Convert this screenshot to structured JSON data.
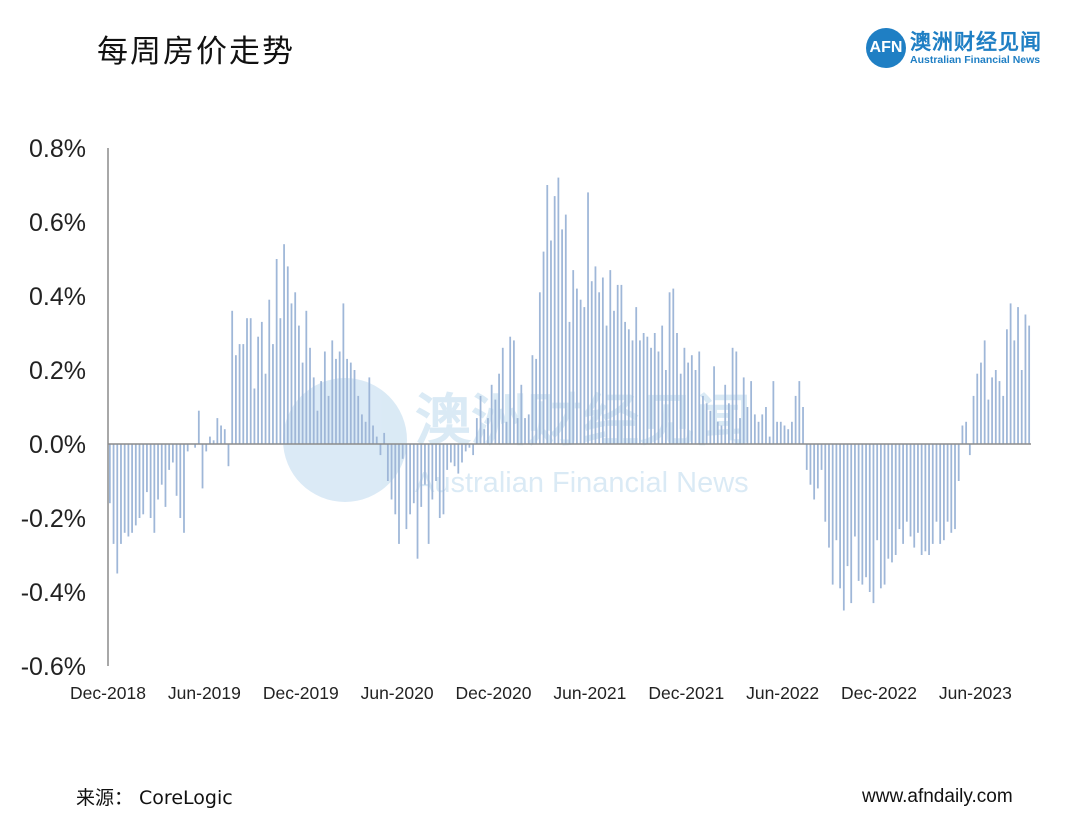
{
  "title": "每周房价走势",
  "logo": {
    "mark": "AFN",
    "name_cn": "澳洲财经见闻",
    "name_en": "Australian Financial News",
    "color": "#1f7fc4"
  },
  "watermark": {
    "cn": "澳洲财经见闻",
    "en": "Australian Financial News"
  },
  "footer": {
    "source": "来源：  CoreLogic",
    "website": "www.afndaily.com"
  },
  "chart_data": {
    "type": "bar",
    "title": "每周房价走势",
    "xlabel": "",
    "ylabel": "",
    "ylim": [
      -0.6,
      0.8
    ],
    "y_ticks": [
      "0.8%",
      "0.6%",
      "0.4%",
      "0.2%",
      "0.0%",
      "-0.2%",
      "-0.4%",
      "-0.6%"
    ],
    "y_tick_values": [
      0.8,
      0.6,
      0.4,
      0.2,
      0.0,
      -0.2,
      -0.4,
      -0.6
    ],
    "x_ticks": [
      "Dec-2018",
      "Jun-2019",
      "Dec-2019",
      "Jun-2020",
      "Dec-2020",
      "Jun-2021",
      "Dec-2021",
      "Jun-2022",
      "Dec-2022",
      "Jun-2023"
    ],
    "x_tick_indices": [
      0,
      26,
      52,
      78,
      104,
      130,
      156,
      182,
      208,
      234
    ],
    "bar_color": "#9fb7d8",
    "grid": false,
    "legend": "none",
    "values": [
      -0.16,
      -0.27,
      -0.35,
      -0.27,
      -0.24,
      -0.25,
      -0.24,
      -0.22,
      -0.2,
      -0.19,
      -0.13,
      -0.2,
      -0.24,
      -0.15,
      -0.11,
      -0.17,
      -0.07,
      -0.05,
      -0.14,
      -0.2,
      -0.24,
      -0.02,
      0.0,
      -0.01,
      0.09,
      -0.12,
      -0.02,
      0.02,
      0.01,
      0.07,
      0.05,
      0.04,
      -0.06,
      0.36,
      0.24,
      0.27,
      0.27,
      0.34,
      0.34,
      0.15,
      0.29,
      0.33,
      0.19,
      0.39,
      0.27,
      0.5,
      0.34,
      0.54,
      0.48,
      0.38,
      0.41,
      0.32,
      0.22,
      0.36,
      0.26,
      0.18,
      0.09,
      0.17,
      0.25,
      0.13,
      0.28,
      0.23,
      0.25,
      0.38,
      0.23,
      0.22,
      0.2,
      0.13,
      0.08,
      0.06,
      0.18,
      0.05,
      0.02,
      -0.03,
      0.03,
      -0.1,
      -0.15,
      -0.19,
      -0.27,
      -0.04,
      -0.23,
      -0.19,
      -0.16,
      -0.31,
      -0.17,
      -0.11,
      -0.27,
      -0.15,
      -0.1,
      -0.2,
      -0.19,
      -0.07,
      -0.05,
      -0.06,
      -0.08,
      -0.05,
      -0.02,
      -0.01,
      -0.03,
      0.07,
      0.13,
      0.04,
      0.07,
      0.16,
      0.12,
      0.19,
      0.26,
      0.06,
      0.29,
      0.28,
      0.07,
      0.16,
      0.07,
      0.08,
      0.24,
      0.23,
      0.41,
      0.52,
      0.7,
      0.55,
      0.67,
      0.72,
      0.58,
      0.62,
      0.33,
      0.47,
      0.42,
      0.39,
      0.37,
      0.68,
      0.44,
      0.48,
      0.41,
      0.45,
      0.32,
      0.47,
      0.36,
      0.43,
      0.43,
      0.33,
      0.31,
      0.28,
      0.37,
      0.28,
      0.3,
      0.29,
      0.26,
      0.3,
      0.25,
      0.32,
      0.2,
      0.41,
      0.42,
      0.3,
      0.19,
      0.26,
      0.22,
      0.24,
      0.2,
      0.25,
      0.13,
      0.11,
      0.09,
      0.21,
      0.06,
      0.05,
      0.16,
      0.11,
      0.26,
      0.25,
      0.07,
      0.18,
      0.1,
      0.17,
      0.08,
      0.06,
      0.08,
      0.1,
      0.02,
      0.17,
      0.06,
      0.06,
      0.05,
      0.04,
      0.06,
      0.13,
      0.17,
      0.1,
      -0.07,
      -0.11,
      -0.15,
      -0.12,
      -0.07,
      -0.21,
      -0.28,
      -0.38,
      -0.26,
      -0.39,
      -0.45,
      -0.33,
      -0.43,
      -0.25,
      -0.37,
      -0.38,
      -0.36,
      -0.4,
      -0.43,
      -0.26,
      -0.39,
      -0.38,
      -0.31,
      -0.32,
      -0.3,
      -0.23,
      -0.27,
      -0.21,
      -0.25,
      -0.28,
      -0.24,
      -0.3,
      -0.29,
      -0.3,
      -0.27,
      -0.21,
      -0.27,
      -0.26,
      -0.21,
      -0.24,
      -0.23,
      -0.1,
      0.05,
      0.06,
      -0.03,
      0.13,
      0.19,
      0.22,
      0.28,
      0.12,
      0.18,
      0.2,
      0.17,
      0.13,
      0.31,
      0.38,
      0.28,
      0.37,
      0.2,
      0.35,
      0.32
    ]
  }
}
